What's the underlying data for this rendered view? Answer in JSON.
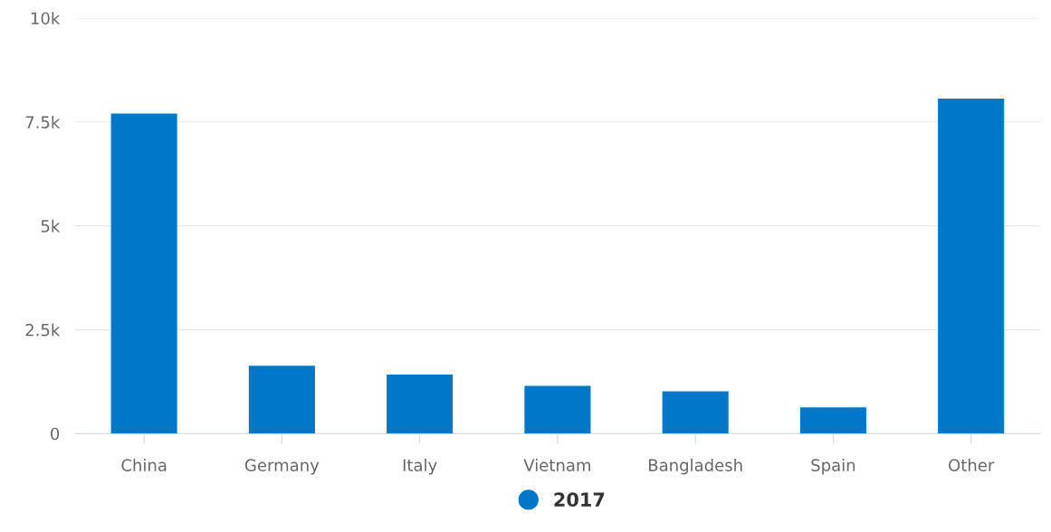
{
  "chart_data": {
    "type": "bar",
    "categories": [
      "China",
      "Germany",
      "Italy",
      "Vietnam",
      "Bangladesh",
      "Spain",
      "Other"
    ],
    "series": [
      {
        "name": "2017",
        "color": "#0077c8",
        "values": [
          7700,
          1630,
          1420,
          1150,
          1020,
          630,
          8060
        ]
      }
    ],
    "ylim": [
      0,
      10000
    ],
    "yticks": [
      {
        "value": 0,
        "label": "0"
      },
      {
        "value": 2500,
        "label": "2.5k"
      },
      {
        "value": 5000,
        "label": "5k"
      },
      {
        "value": 7500,
        "label": "7.5k"
      },
      {
        "value": 10000,
        "label": "10k"
      }
    ],
    "grid": "y",
    "legend": "bottom",
    "marker": "circle"
  }
}
